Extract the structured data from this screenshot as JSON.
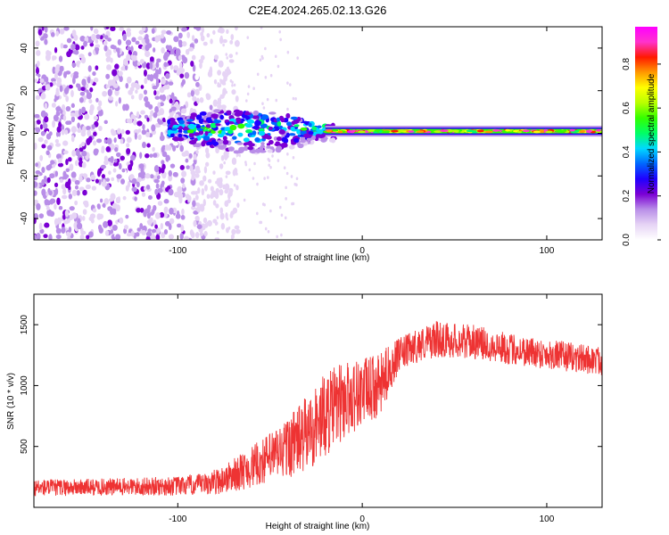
{
  "title": "C2E4.2024.265.02.13.G26",
  "chart_data": [
    {
      "type": "heatmap",
      "name": "spectrogram",
      "xlabel": "Height of straight line (km)",
      "ylabel": "Frequency (Hz)",
      "xlim": [
        -178,
        130
      ],
      "ylim": [
        -50,
        50
      ],
      "xticks": [
        -100,
        0,
        100
      ],
      "yticks": [
        -40,
        -20,
        0,
        20,
        40
      ],
      "colorbar": {
        "label": "Normalized spectral amplitude",
        "ticks": [
          "0.0",
          "0.2",
          "0.4",
          "0.6",
          "0.8"
        ],
        "range": [
          0,
          0.97
        ],
        "colors": [
          "#ffffff",
          "#e6d4f5",
          "#b98ee8",
          "#7b00d4",
          "#2000ff",
          "#0066ff",
          "#00d8ff",
          "#00ff66",
          "#33ff00",
          "#b8ff00",
          "#ffff00",
          "#ff9900",
          "#ff1a00",
          "#ff33cc",
          "#ff00ff"
        ]
      },
      "features": [
        {
          "label": "scattered noise",
          "x_range": [
            -178,
            -80
          ],
          "y_range": [
            -50,
            50
          ],
          "amplitude": 0.15
        },
        {
          "label": "tone near 0 Hz, fading",
          "x_range": [
            -105,
            -15
          ],
          "y_center": 2,
          "amplitude": 0.45
        },
        {
          "label": "strong tone near 1 Hz",
          "x_range": [
            -20,
            130
          ],
          "y_center": 1,
          "amplitude": 0.9
        }
      ]
    },
    {
      "type": "line",
      "name": "snr",
      "xlabel": "Height of straight line (km)",
      "ylabel": "SNR (10 * v/v)",
      "xlim": [
        -178,
        130
      ],
      "ylim": [
        0,
        1750
      ],
      "xticks": [
        -100,
        0,
        100
      ],
      "yticks": [
        500,
        1000,
        1500
      ],
      "color": "#ee3333",
      "series": [
        {
          "name": "SNR envelope",
          "x": [
            -178,
            -150,
            -120,
            -100,
            -85,
            -75,
            -60,
            -45,
            -30,
            -20,
            -10,
            0,
            10,
            15,
            20,
            30,
            40,
            60,
            80,
            100,
            120,
            130
          ],
          "mean": [
            160,
            165,
            170,
            175,
            190,
            230,
            330,
            450,
            600,
            760,
            880,
            950,
            1000,
            1150,
            1250,
            1330,
            1380,
            1360,
            1300,
            1260,
            1220,
            1200
          ],
          "spread": [
            70,
            70,
            75,
            80,
            90,
            120,
            170,
            230,
            320,
            350,
            330,
            280,
            260,
            200,
            140,
            140,
            150,
            140,
            130,
            125,
            120,
            120
          ]
        }
      ]
    }
  ]
}
